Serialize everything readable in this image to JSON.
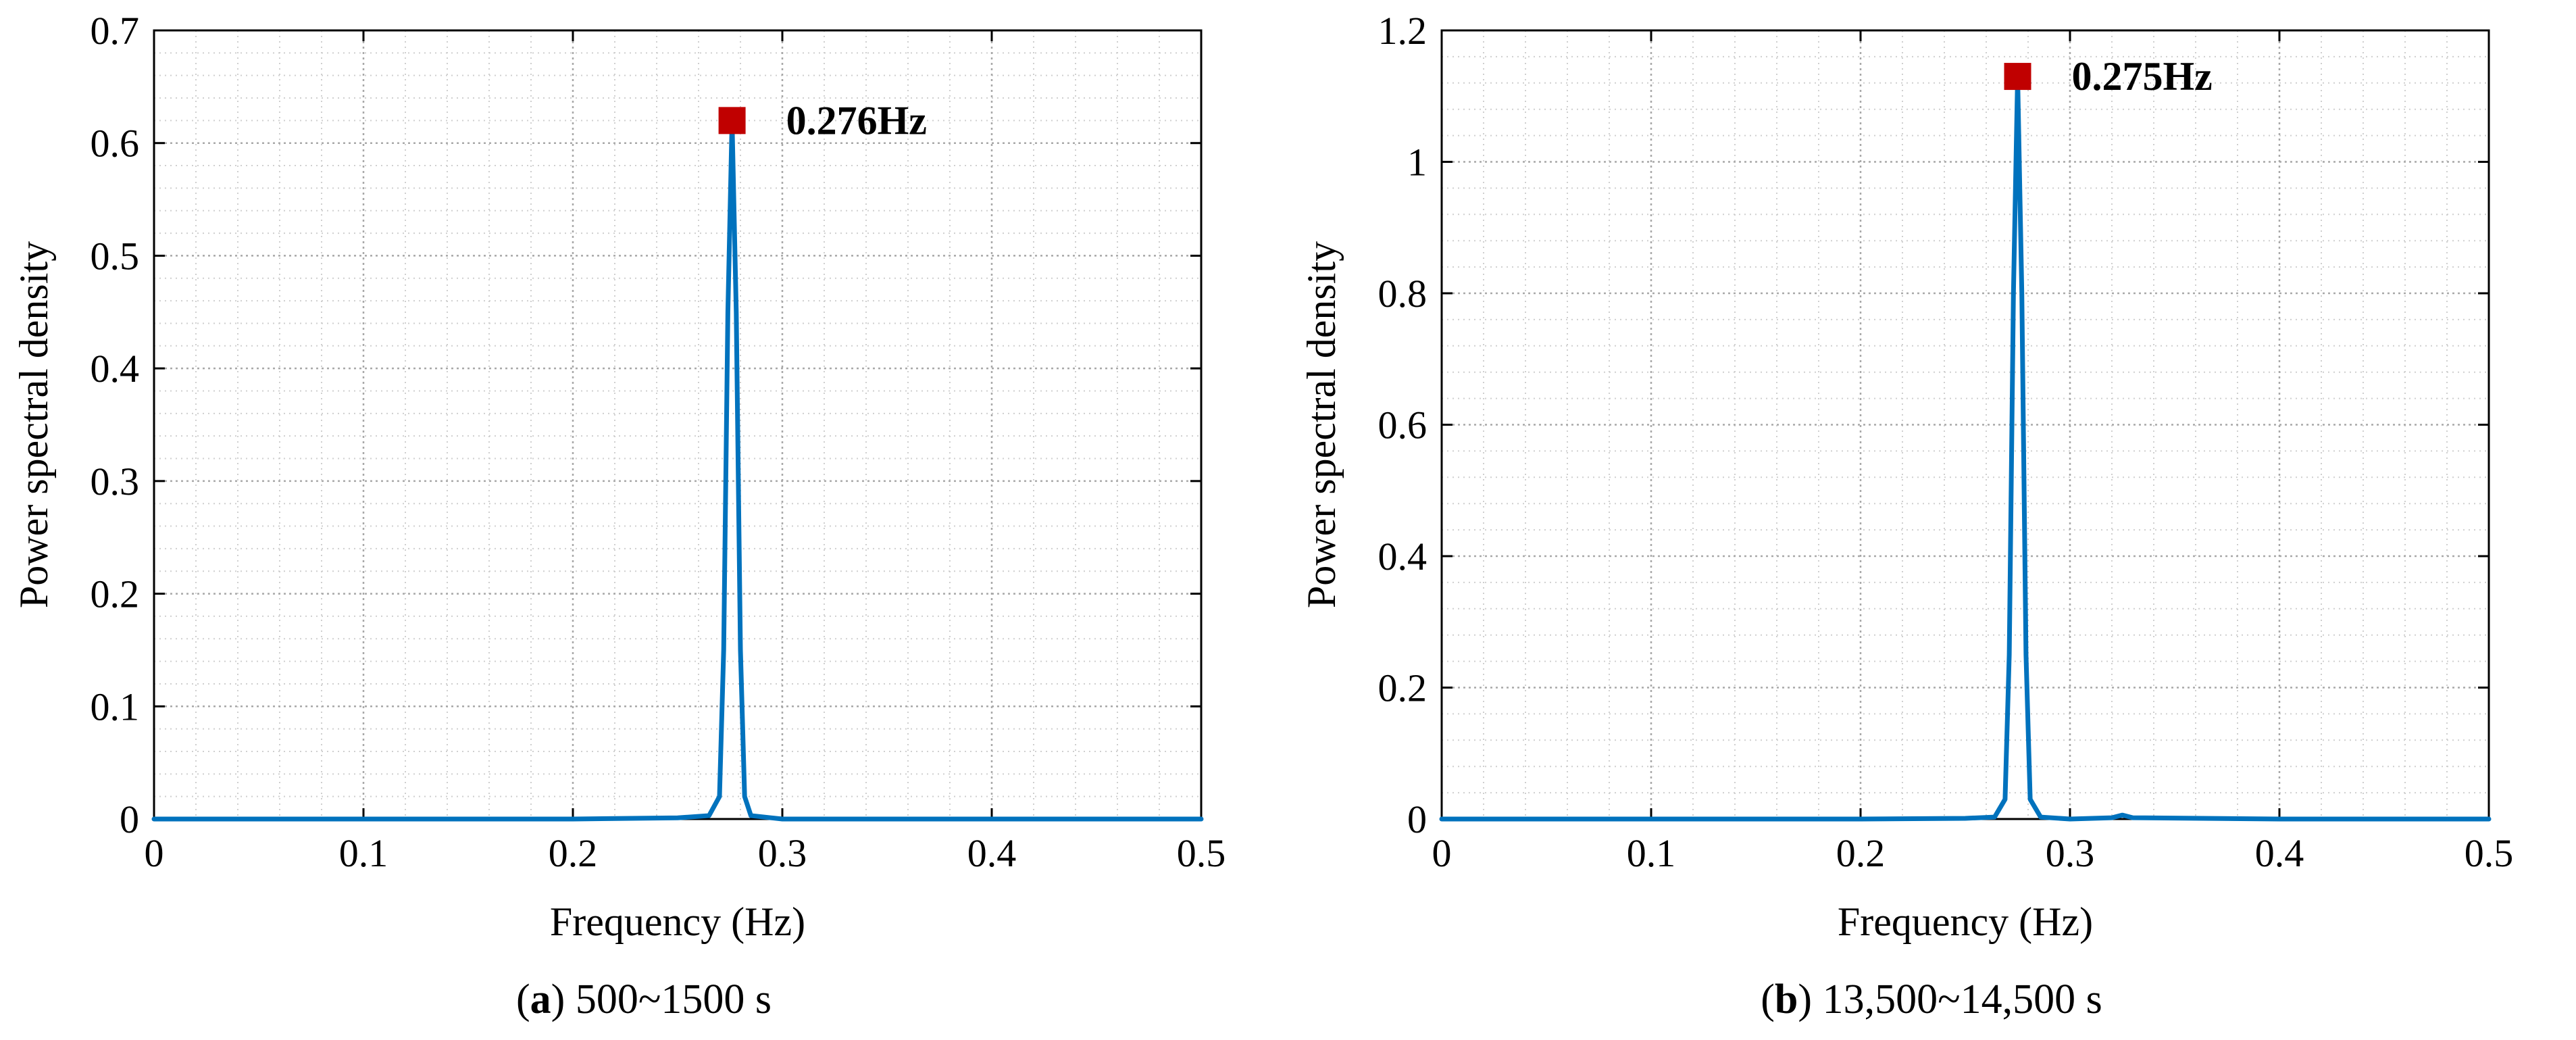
{
  "chart_data": [
    {
      "type": "line",
      "panel": "a",
      "caption_letter": "a",
      "caption_text": "500~1500 s",
      "xlabel": "Frequency (Hz)",
      "ylabel": "Power spectral density",
      "xlim": [
        0,
        0.5
      ],
      "ylim": [
        0,
        0.7
      ],
      "xticks": [
        0,
        0.1,
        0.2,
        0.3,
        0.4,
        0.5
      ],
      "yticks": [
        0,
        0.1,
        0.2,
        0.3,
        0.4,
        0.5,
        0.6,
        0.7
      ],
      "grid": true,
      "line_color": "#0072BD",
      "marker_color": "#C00000",
      "peak": {
        "x": 0.276,
        "y": 0.62,
        "label": "0.276Hz"
      },
      "series": [
        {
          "x": [
            0,
            0.1,
            0.2,
            0.25,
            0.265,
            0.27,
            0.272,
            0.274,
            0.276,
            0.278,
            0.28,
            0.282,
            0.285,
            0.3,
            0.35,
            0.4,
            0.5
          ],
          "y": [
            0,
            0,
            0,
            0.001,
            0.003,
            0.02,
            0.15,
            0.45,
            0.62,
            0.45,
            0.15,
            0.02,
            0.003,
            0,
            0,
            0,
            0
          ]
        }
      ]
    },
    {
      "type": "line",
      "panel": "b",
      "caption_letter": "b",
      "caption_text": "13,500~14,500 s",
      "xlabel": "Frequency (Hz)",
      "ylabel": "Power spectral density",
      "xlim": [
        0,
        0.5
      ],
      "ylim": [
        0,
        1.2
      ],
      "xticks": [
        0,
        0.1,
        0.2,
        0.3,
        0.4,
        0.5
      ],
      "yticks": [
        0,
        0.2,
        0.4,
        0.6,
        0.8,
        1,
        1.2
      ],
      "grid": true,
      "line_color": "#0072BD",
      "marker_color": "#C00000",
      "peak": {
        "x": 0.275,
        "y": 1.13,
        "label": "0.275Hz"
      },
      "series": [
        {
          "x": [
            0,
            0.1,
            0.2,
            0.25,
            0.264,
            0.269,
            0.271,
            0.273,
            0.275,
            0.277,
            0.279,
            0.281,
            0.286,
            0.3,
            0.32,
            0.325,
            0.33,
            0.4,
            0.5
          ],
          "y": [
            0,
            0,
            0,
            0.001,
            0.003,
            0.03,
            0.25,
            0.8,
            1.13,
            0.8,
            0.25,
            0.03,
            0.003,
            0,
            0.002,
            0.006,
            0.002,
            0,
            0
          ]
        }
      ]
    }
  ]
}
